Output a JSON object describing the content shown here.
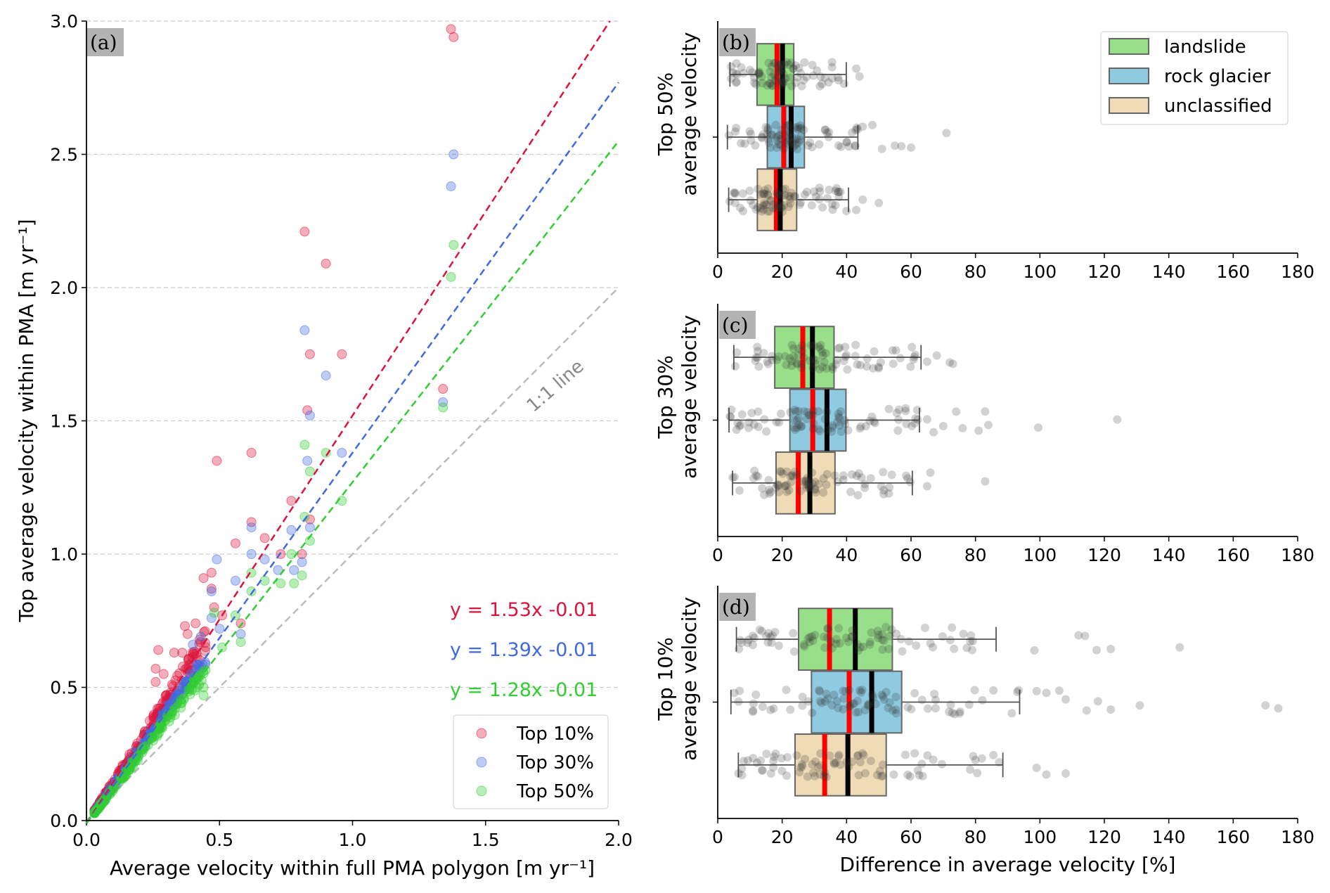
{
  "chart_data": [
    {
      "type": "scatter",
      "panel_label": "(a)",
      "xlabel": "Average velocity within full PMA polygon [m yr⁻¹]",
      "ylabel": "Top average velocity within PMA [m yr⁻¹]",
      "xlim": [
        0,
        2.0
      ],
      "ylim": [
        0,
        3.0
      ],
      "xticks": [
        "0.0",
        "0.5",
        "1.0",
        "1.5",
        "2.0"
      ],
      "yticks": [
        "0.0",
        "0.5",
        "1.0",
        "1.5",
        "2.0",
        "2.5",
        "3.0"
      ],
      "grid": "horizontal dashed",
      "legend_position": "lower-right",
      "one_to_one_label": "1:1 line",
      "series": [
        {
          "name": "Top 10%",
          "color": "#dc143c",
          "slope": 1.53,
          "intercept": -0.01,
          "equation": "y = 1.53x -0.01",
          "points": [
            [
              1.37,
              2.97
            ],
            [
              1.38,
              2.94
            ],
            [
              0.82,
              2.21
            ],
            [
              0.9,
              2.09
            ],
            [
              0.84,
              1.75
            ],
            [
              0.96,
              1.75
            ],
            [
              1.34,
              1.62
            ],
            [
              0.83,
              1.54
            ],
            [
              0.49,
              1.35
            ],
            [
              0.62,
              1.38
            ],
            [
              0.77,
              1.2
            ],
            [
              0.62,
              1.12
            ],
            [
              0.56,
              1.04
            ],
            [
              0.67,
              1.06
            ],
            [
              0.73,
              1.0
            ],
            [
              0.81,
              1.0
            ],
            [
              0.47,
              0.93
            ],
            [
              0.44,
              0.91
            ],
            [
              0.47,
              0.87
            ],
            [
              0.48,
              0.8
            ],
            [
              0.51,
              0.77
            ],
            [
              0.41,
              0.74
            ],
            [
              0.37,
              0.73
            ],
            [
              0.38,
              0.7
            ],
            [
              0.33,
              0.63
            ],
            [
              0.27,
              0.64
            ],
            [
              0.36,
              0.63
            ],
            [
              0.26,
              0.57
            ],
            [
              0.29,
              0.55
            ],
            [
              0.26,
              0.52
            ],
            [
              0.84,
              1.13
            ],
            [
              0.58,
              0.74
            ]
          ]
        },
        {
          "name": "Top 30%",
          "color": "#4169e1",
          "slope": 1.39,
          "intercept": -0.01,
          "equation": "y = 1.39x -0.01",
          "points": [
            [
              1.38,
              2.5
            ],
            [
              1.37,
              2.38
            ],
            [
              0.82,
              1.84
            ],
            [
              0.9,
              1.67
            ],
            [
              0.84,
              1.52
            ],
            [
              0.96,
              1.38
            ],
            [
              1.34,
              1.57
            ],
            [
              0.83,
              1.35
            ],
            [
              0.62,
              1.1
            ],
            [
              0.77,
              1.09
            ],
            [
              0.49,
              0.98
            ],
            [
              0.62,
              1.0
            ],
            [
              0.67,
              0.98
            ],
            [
              0.81,
              0.97
            ],
            [
              0.84,
              1.1
            ],
            [
              0.78,
              0.94
            ],
            [
              0.56,
              0.9
            ],
            [
              0.47,
              0.86
            ],
            [
              0.72,
              0.94
            ],
            [
              0.47,
              0.76
            ],
            [
              0.58,
              0.7
            ],
            [
              0.5,
              0.72
            ],
            [
              0.43,
              0.69
            ],
            [
              0.4,
              0.66
            ]
          ]
        },
        {
          "name": "Top 50%",
          "color": "#32cd32",
          "slope": 1.28,
          "intercept": -0.01,
          "equation": "y = 1.28x -0.01",
          "points": [
            [
              1.38,
              2.16
            ],
            [
              1.37,
              2.04
            ],
            [
              1.34,
              1.55
            ],
            [
              0.82,
              1.41
            ],
            [
              0.9,
              1.38
            ],
            [
              0.84,
              1.31
            ],
            [
              0.96,
              1.2
            ],
            [
              0.82,
              1.14
            ],
            [
              0.84,
              1.05
            ],
            [
              0.77,
              1.0
            ],
            [
              0.81,
              0.92
            ],
            [
              0.62,
              0.93
            ],
            [
              0.62,
              0.86
            ],
            [
              0.67,
              0.9
            ],
            [
              0.73,
              0.89
            ],
            [
              0.78,
              0.89
            ],
            [
              0.56,
              0.77
            ],
            [
              0.58,
              0.67
            ],
            [
              0.51,
              0.65
            ],
            [
              0.48,
              0.78
            ],
            [
              0.44,
              0.5
            ],
            [
              0.44,
              0.47
            ]
          ]
        }
      ]
    },
    {
      "type": "box",
      "panel_label": "(b)",
      "ylabel": [
        "Top 50%",
        "average velocity"
      ],
      "xlim": [
        0,
        180
      ],
      "xticks": [
        "0",
        "20",
        "40",
        "60",
        "80",
        "100",
        "120",
        "140",
        "160",
        "180"
      ],
      "legend": [
        "landslide",
        "rock glacier",
        "unclassified"
      ],
      "boxes": [
        {
          "name": "landslide",
          "color": "#98df8a",
          "q1": 12.2,
          "q3": 23.6,
          "red_line": 18.4,
          "black_line": 20.1,
          "whisker_low": 3.8,
          "whisker_high": 39.9,
          "outliers": [
            43,
            44
          ]
        },
        {
          "name": "rock glacier",
          "color": "#8ecae0",
          "q1": 15.4,
          "q3": 26.9,
          "red_line": 20.5,
          "black_line": 22.8,
          "whisker_low": 3.0,
          "whisker_high": 43.5,
          "outliers": [
            45,
            48,
            51,
            55,
            57,
            60,
            71
          ]
        },
        {
          "name": "unclassified",
          "color": "#efdcb6",
          "q1": 12.3,
          "q3": 24.5,
          "red_line": 18.2,
          "black_line": 19.4,
          "whisker_low": 3.4,
          "whisker_high": 40.6,
          "outliers": [
            43,
            45,
            50
          ]
        }
      ]
    },
    {
      "type": "box",
      "panel_label": "(c)",
      "ylabel": [
        "Top 30%",
        "average velocity"
      ],
      "xlim": [
        0,
        180
      ],
      "xticks": [
        "0",
        "20",
        "40",
        "60",
        "80",
        "100",
        "120",
        "140",
        "160",
        "180"
      ],
      "boxes": [
        {
          "name": "landslide",
          "color": "#98df8a",
          "q1": 17.7,
          "q3": 36.1,
          "red_line": 26.4,
          "black_line": 29.4,
          "whisker_low": 5.0,
          "whisker_high": 63.1,
          "outliers": [
            65,
            68,
            72,
            73
          ]
        },
        {
          "name": "rock glacier",
          "color": "#8ecae0",
          "q1": 22.4,
          "q3": 39.8,
          "red_line": 29.5,
          "black_line": 33.9,
          "whisker_low": 3.5,
          "whisker_high": 62.6,
          "outliers": [
            65,
            67,
            70,
            74,
            76,
            81,
            83,
            84,
            99.5,
            124
          ]
        },
        {
          "name": "unclassified",
          "color": "#efdcb6",
          "q1": 18.1,
          "q3": 36.4,
          "red_line": 25.0,
          "black_line": 28.6,
          "whisker_low": 4.6,
          "whisker_high": 60.4,
          "outliers": [
            65,
            66,
            83
          ]
        }
      ]
    },
    {
      "type": "box",
      "panel_label": "(d)",
      "ylabel": [
        "Top 10%",
        "average velocity"
      ],
      "xlim": [
        0,
        180
      ],
      "xlabel": "Difference in average velocity [%]",
      "xticks": [
        "0",
        "20",
        "40",
        "60",
        "80",
        "100",
        "120",
        "140",
        "160",
        "180"
      ],
      "boxes": [
        {
          "name": "landslide",
          "color": "#98df8a",
          "q1": 25.1,
          "q3": 54.2,
          "red_line": 34.7,
          "black_line": 42.7,
          "whisker_low": 5.8,
          "whisker_high": 86.4,
          "outliers": [
            98.3,
            112,
            114,
            117.6,
            122,
            143.4
          ]
        },
        {
          "name": "rock glacier",
          "color": "#8ecae0",
          "q1": 29.1,
          "q3": 57.1,
          "red_line": 40.8,
          "black_line": 47.8,
          "whisker_low": 4.1,
          "whisker_high": 93.7,
          "outliers": [
            99,
            102,
            106,
            108,
            114.5,
            118,
            122,
            131,
            170,
            174
          ]
        },
        {
          "name": "unclassified",
          "color": "#efdcb6",
          "q1": 24.0,
          "q3": 52.3,
          "red_line": 33.2,
          "black_line": 40.4,
          "whisker_low": 6.4,
          "whisker_high": 88.5,
          "outliers": [
            99,
            102,
            108
          ]
        }
      ]
    }
  ]
}
